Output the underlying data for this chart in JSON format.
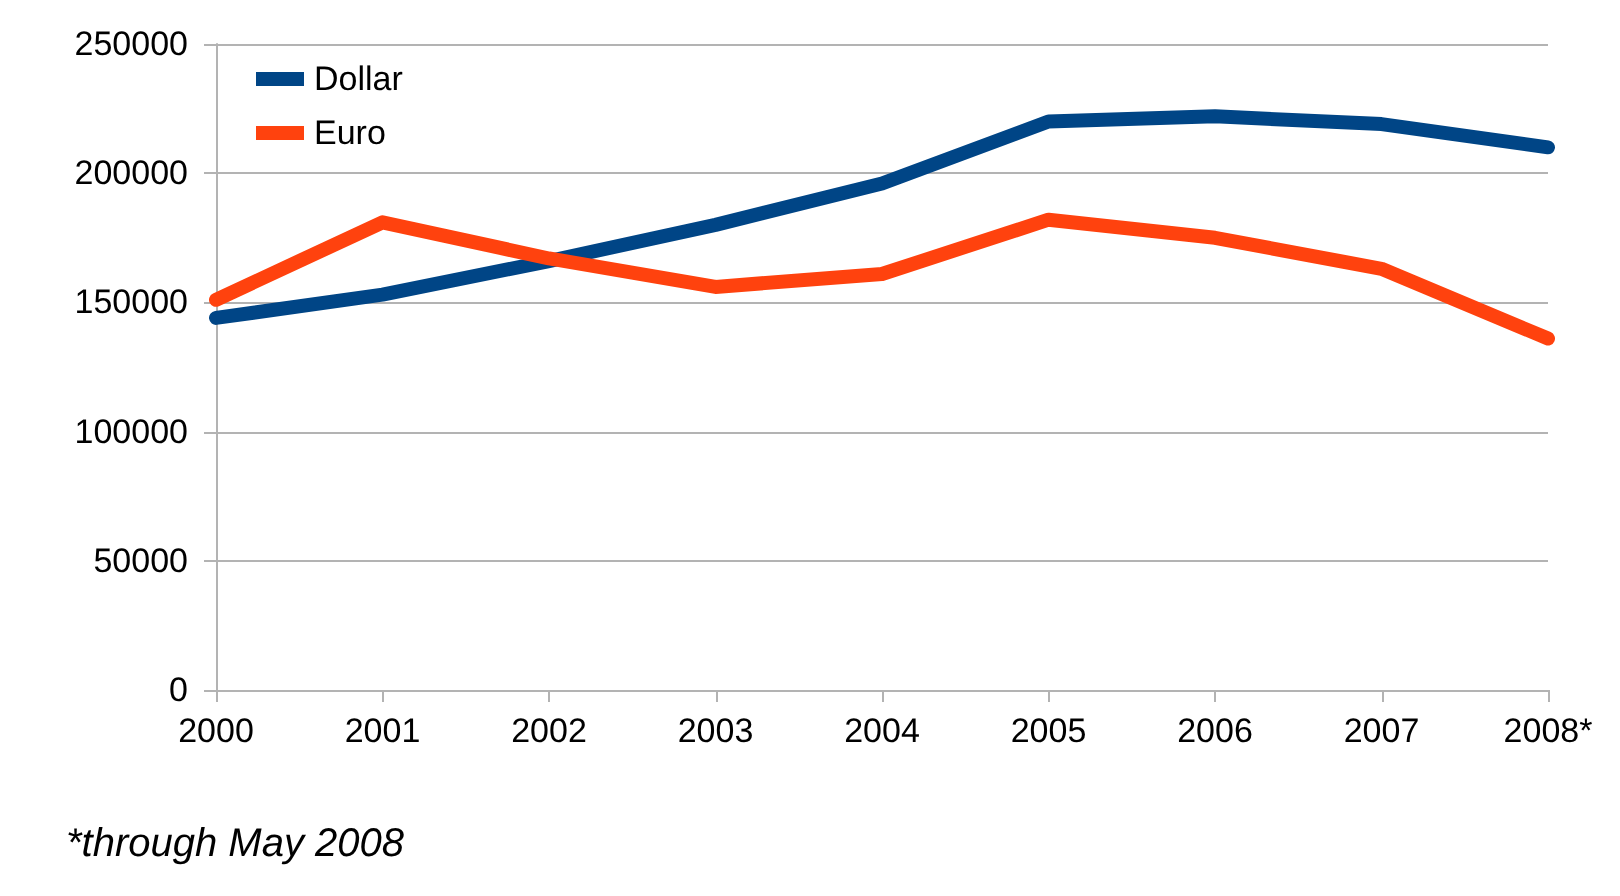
{
  "chart_data": {
    "type": "line",
    "categories": [
      "2000",
      "2001",
      "2002",
      "2003",
      "2004",
      "2005",
      "2006",
      "2007",
      "2008*"
    ],
    "series": [
      {
        "name": "Dollar",
        "color": "#004586",
        "values": [
          144000,
          153000,
          166000,
          180000,
          196000,
          220000,
          222000,
          219000,
          210000
        ]
      },
      {
        "name": "Euro",
        "color": "#ff420e",
        "values": [
          151000,
          181000,
          167000,
          156000,
          161000,
          182000,
          175000,
          163000,
          136000
        ]
      }
    ],
    "ylim": [
      0,
      250000
    ],
    "yticks": [
      0,
      50000,
      100000,
      150000,
      200000,
      250000
    ],
    "grid": "y",
    "legend": "top left",
    "marker": "none",
    "line_style": "solid",
    "annotations": [
      "*through May 2008"
    ]
  }
}
